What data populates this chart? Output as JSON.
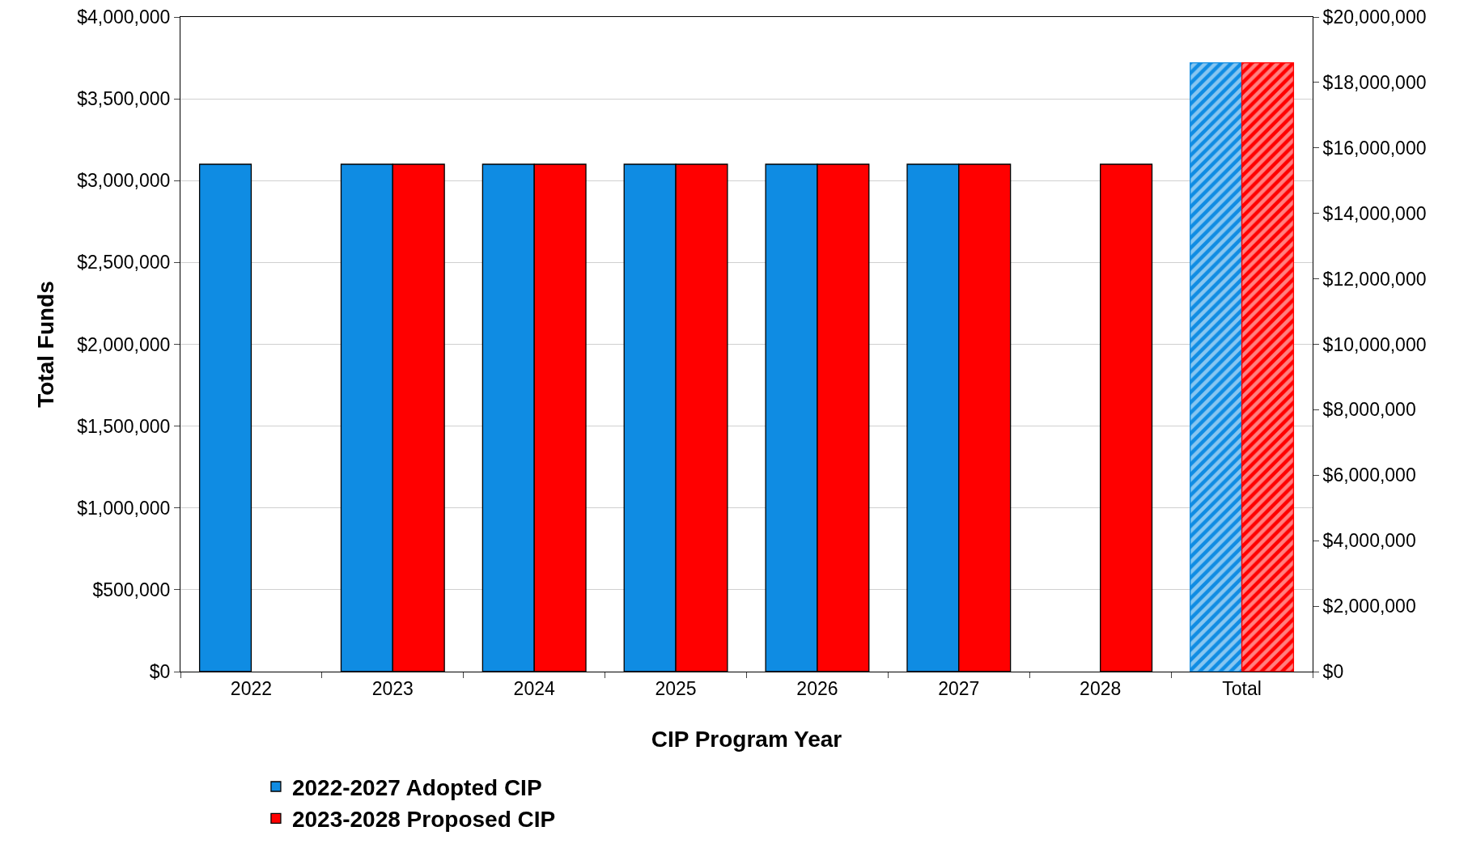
{
  "chart_data": {
    "type": "bar",
    "xlabel": "CIP Program Year",
    "ylabel": "Total Funds",
    "categories": [
      "2022",
      "2023",
      "2024",
      "2025",
      "2026",
      "2027",
      "2028",
      "Total"
    ],
    "series": [
      {
        "name": "2022-2027 Adopted CIP",
        "color": "#0f8ce3",
        "values": [
          3100000,
          3100000,
          3100000,
          3100000,
          3100000,
          3100000,
          null,
          null
        ]
      },
      {
        "name": "2023-2028 Proposed CIP",
        "color": "#ff0000",
        "values": [
          null,
          3100000,
          3100000,
          3100000,
          3100000,
          3100000,
          3100000,
          null
        ]
      },
      {
        "color": "#0f8ce3",
        "axis": "y2",
        "values": [
          null,
          null,
          null,
          null,
          null,
          null,
          null,
          18600000
        ]
      },
      {
        "color": "#ff0000",
        "axis": "y2",
        "values": [
          null,
          null,
          null,
          null,
          null,
          null,
          null,
          18600000
        ]
      }
    ],
    "ylim": [
      0,
      4000000
    ],
    "yticks": [
      {
        "value": 0,
        "label": "$0"
      },
      {
        "value": 500000,
        "label": "$500,000"
      },
      {
        "value": 1000000,
        "label": "$1,000,000"
      },
      {
        "value": 1500000,
        "label": "$1,500,000"
      },
      {
        "value": 2000000,
        "label": "$2,000,000"
      },
      {
        "value": 2500000,
        "label": "$2,500,000"
      },
      {
        "value": 3000000,
        "label": "$3,000,000"
      },
      {
        "value": 3500000,
        "label": "$3,500,000"
      },
      {
        "value": 4000000,
        "label": "$4,000,000"
      }
    ],
    "y2lim": [
      0,
      20000000
    ],
    "y2ticks": [
      {
        "value": 0,
        "label": "$0"
      },
      {
        "value": 2000000,
        "label": "$2,000,000"
      },
      {
        "value": 4000000,
        "label": "$4,000,000"
      },
      {
        "value": 6000000,
        "label": "$6,000,000"
      },
      {
        "value": 8000000,
        "label": "$8,000,000"
      },
      {
        "value": 10000000,
        "label": "$10,000,000"
      },
      {
        "value": 12000000,
        "label": "$12,000,000"
      },
      {
        "value": 14000000,
        "label": "$14,000,000"
      },
      {
        "value": 16000000,
        "label": "$16,000,000"
      },
      {
        "value": 18000000,
        "label": "$18,000,000"
      },
      {
        "value": 20000000,
        "label": "$20,000,000"
      }
    ],
    "grid": "y",
    "legend": "bottom"
  }
}
